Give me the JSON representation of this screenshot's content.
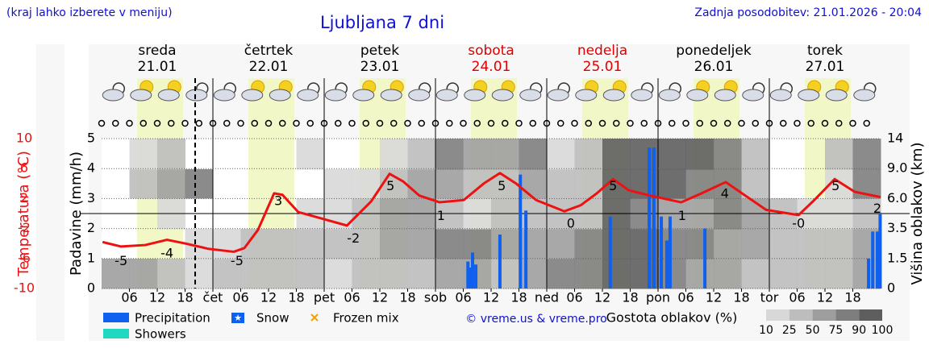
{
  "chart_data": {
    "type": "meteogram",
    "title": "Ljubljana 7 dni",
    "note": "(kraj lahko izberete v meniju)",
    "updated": "Zadnja posodobitev: 21.01.2026 - 20:04",
    "credit": "© vreme.us & vreme.pro",
    "days": [
      {
        "name": "sreda",
        "date": "21.01",
        "color": "#000000"
      },
      {
        "name": "četrtek",
        "date": "22.01",
        "color": "#000000"
      },
      {
        "name": "petek",
        "date": "23.01",
        "color": "#000000"
      },
      {
        "name": "sobota",
        "date": "24.01",
        "color": "#e00000"
      },
      {
        "name": "nedelja",
        "date": "25.01",
        "color": "#e00000"
      },
      {
        "name": "ponedeljek",
        "date": "26.01",
        "color": "#000000"
      },
      {
        "name": "torek",
        "date": "27.01",
        "color": "#000000"
      }
    ],
    "xlim": [
      0,
      168
    ],
    "xticks": [
      {
        "value": 6,
        "label": "06"
      },
      {
        "value": 12,
        "label": "12"
      },
      {
        "value": 18,
        "label": "18"
      },
      {
        "value": 24,
        "label": "čet"
      },
      {
        "value": 30,
        "label": "06"
      },
      {
        "value": 36,
        "label": "12"
      },
      {
        "value": 42,
        "label": "18"
      },
      {
        "value": 48,
        "label": "pet"
      },
      {
        "value": 54,
        "label": "06"
      },
      {
        "value": 60,
        "label": "12"
      },
      {
        "value": 66,
        "label": "18"
      },
      {
        "value": 72,
        "label": "sob"
      },
      {
        "value": 78,
        "label": "06"
      },
      {
        "value": 84,
        "label": "12"
      },
      {
        "value": 90,
        "label": "18"
      },
      {
        "value": 96,
        "label": "ned"
      },
      {
        "value": 102,
        "label": "06"
      },
      {
        "value": 108,
        "label": "12"
      },
      {
        "value": 114,
        "label": "18"
      },
      {
        "value": 120,
        "label": "pon"
      },
      {
        "value": 126,
        "label": "06"
      },
      {
        "value": 132,
        "label": "12"
      },
      {
        "value": 138,
        "label": "18"
      },
      {
        "value": 144,
        "label": "tor"
      },
      {
        "value": 150,
        "label": "06"
      },
      {
        "value": 156,
        "label": "12"
      },
      {
        "value": 162,
        "label": "18"
      }
    ],
    "y_label": "Padavine (mm/h)",
    "ylim": [
      0,
      5
    ],
    "yticks": [
      0,
      1,
      2,
      3,
      4,
      5
    ],
    "temp_label": "Temperatura (°C)",
    "temp_lim": [
      -10,
      10
    ],
    "temp_ticks": [
      -10,
      -6,
      -2,
      2,
      6,
      10
    ],
    "y2_label": "Višina oblakov (km)",
    "y2ticks": [
      0,
      1.5,
      3.5,
      {
        "value": 6,
        "label": "6.0"
      },
      {
        "value": 9,
        "label": "9.0"
      },
      14
    ],
    "temperature": {
      "color": "#ee1111",
      "x": [
        0.2,
        4.2,
        9.4,
        14.1,
        18.1,
        23,
        28.5,
        30.8,
        33.7,
        37.2,
        39,
        42.4,
        47.7,
        52.9,
        58.1,
        62.1,
        65,
        68.5,
        72.9,
        78.1,
        82.4,
        85.9,
        89.4,
        93.7,
        99.8,
        103.3,
        106.8,
        110.3,
        113.7,
        119,
        125,
        129.4,
        134.6,
        138.1,
        143.3,
        150.3,
        153.7,
        158.1,
        162.4,
        168
      ],
      "values": [
        -3.8,
        -4.4,
        -4.2,
        -3.5,
        -4,
        -4.7,
        -5.1,
        -4.6,
        -2.2,
        2.7,
        2.5,
        0.2,
        -0.7,
        -1.6,
        1.6,
        5.3,
        4.3,
        2.4,
        1.5,
        1.8,
        4.0,
        5.4,
        4.0,
        1.8,
        0.3,
        1.1,
        2.7,
        4.6,
        3.1,
        2.3,
        1.5,
        2.7,
        4.2,
        2.7,
        0.5,
        -0.2,
        1.8,
        4.6,
        2.9,
        2.2
      ]
    },
    "temp_extremes": {
      "x": [
        4.2,
        14.1,
        29.2,
        38.1,
        54.3,
        62.3,
        73.2,
        86.3,
        101.2,
        110.3,
        125.2,
        134.4,
        150.3,
        158.3,
        167.3
      ],
      "values": [
        -5,
        -4,
        -5,
        3,
        -2,
        5,
        1,
        5,
        0,
        5,
        1,
        4,
        0,
        5,
        2
      ],
      "value_labels": [
        "-5",
        "-4",
        "-5",
        "3",
        "-2",
        "5",
        "1",
        "5",
        "0",
        "5",
        "1",
        "4",
        "-0",
        "5",
        "2"
      ]
    },
    "precipitation": {
      "name": "Precipitation",
      "color": "#1060f0",
      "x": [
        79,
        79.5,
        80,
        80.7,
        85.9,
        90.3,
        91.5,
        109.7,
        118.1,
        119.1,
        120.7,
        121.9,
        122.6,
        130.1,
        165.4,
        166.3,
        167.3,
        167.9
      ],
      "values": [
        0.9,
        0.7,
        1.2,
        0.8,
        1.8,
        3.8,
        2.6,
        2.4,
        4.7,
        4.7,
        2.4,
        1.6,
        2.4,
        2.0,
        1.0,
        1.9,
        1.9,
        2.5
      ]
    },
    "showers": {
      "name": "Showers",
      "color": "#20d8c0"
    },
    "snow": {
      "name": "Snow",
      "color": "#1060f0"
    },
    "frozen_mix": {
      "name": "Frozen mix",
      "color": "#f0a000"
    },
    "clouds": {
      "title": "Gostota oblakov (%)",
      "levels": [
        10,
        25,
        50,
        75,
        90,
        100
      ],
      "colors": [
        "#d8d8d8",
        "#bdbdbd",
        "#9e9e9e",
        "#7e7e7e",
        "#5e5e5e"
      ],
      "values": [
        [
          50,
          0,
          0,
          0,
          0
        ],
        [
          50,
          0,
          0,
          25,
          10
        ],
        [
          25,
          0,
          10,
          50,
          25
        ],
        [
          10,
          10,
          0,
          75,
          0
        ],
        [
          25,
          10,
          0,
          0,
          0
        ],
        [
          25,
          25,
          0,
          0,
          0
        ],
        [
          25,
          25,
          0,
          0,
          0
        ],
        [
          25,
          25,
          10,
          0,
          10
        ],
        [
          10,
          25,
          10,
          10,
          0
        ],
        [
          25,
          25,
          25,
          10,
          0
        ],
        [
          25,
          50,
          50,
          25,
          10
        ],
        [
          25,
          50,
          50,
          50,
          25
        ],
        [
          50,
          75,
          25,
          50,
          75
        ],
        [
          50,
          75,
          10,
          25,
          50
        ],
        [
          25,
          50,
          25,
          25,
          50
        ],
        [
          50,
          50,
          25,
          50,
          75
        ],
        [
          75,
          50,
          25,
          25,
          10
        ],
        [
          75,
          75,
          25,
          25,
          25
        ],
        [
          90,
          90,
          90,
          90,
          90
        ],
        [
          90,
          90,
          75,
          90,
          90
        ],
        [
          75,
          75,
          50,
          90,
          90
        ],
        [
          50,
          75,
          50,
          75,
          90
        ],
        [
          50,
          50,
          75,
          75,
          75
        ],
        [
          25,
          50,
          50,
          25,
          25
        ],
        [
          25,
          25,
          25,
          0,
          0
        ],
        [
          25,
          25,
          10,
          0,
          0
        ],
        [
          25,
          25,
          10,
          10,
          25
        ],
        [
          50,
          50,
          25,
          75,
          75
        ]
      ]
    }
  }
}
